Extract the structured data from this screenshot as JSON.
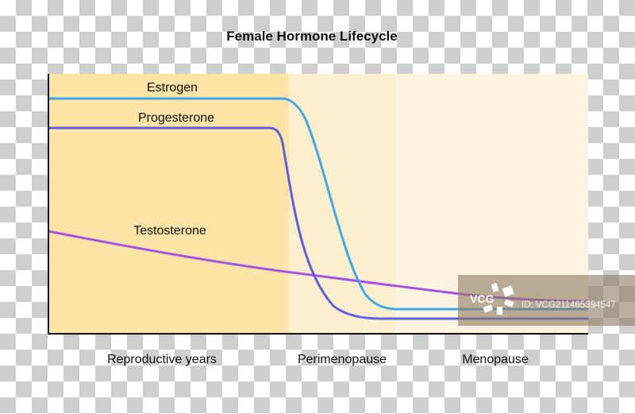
{
  "title": "Female Hormone Lifecycle",
  "phases": [
    {
      "label": "Reproductive years",
      "color": "#fce3a6"
    },
    {
      "label": "Perimenopause",
      "color": "#fdefcd"
    },
    {
      "label": "Menopause",
      "color": "#fdf3de"
    }
  ],
  "series": [
    {
      "label": "Estrogen",
      "color": "#3ea8e8"
    },
    {
      "label": "Progesterone",
      "color": "#5b5fe0"
    },
    {
      "label": "Testosterone",
      "color": "#a552e2"
    }
  ],
  "watermark": {
    "brand": "VCG",
    "id": "ID: VCG211465394547"
  }
}
